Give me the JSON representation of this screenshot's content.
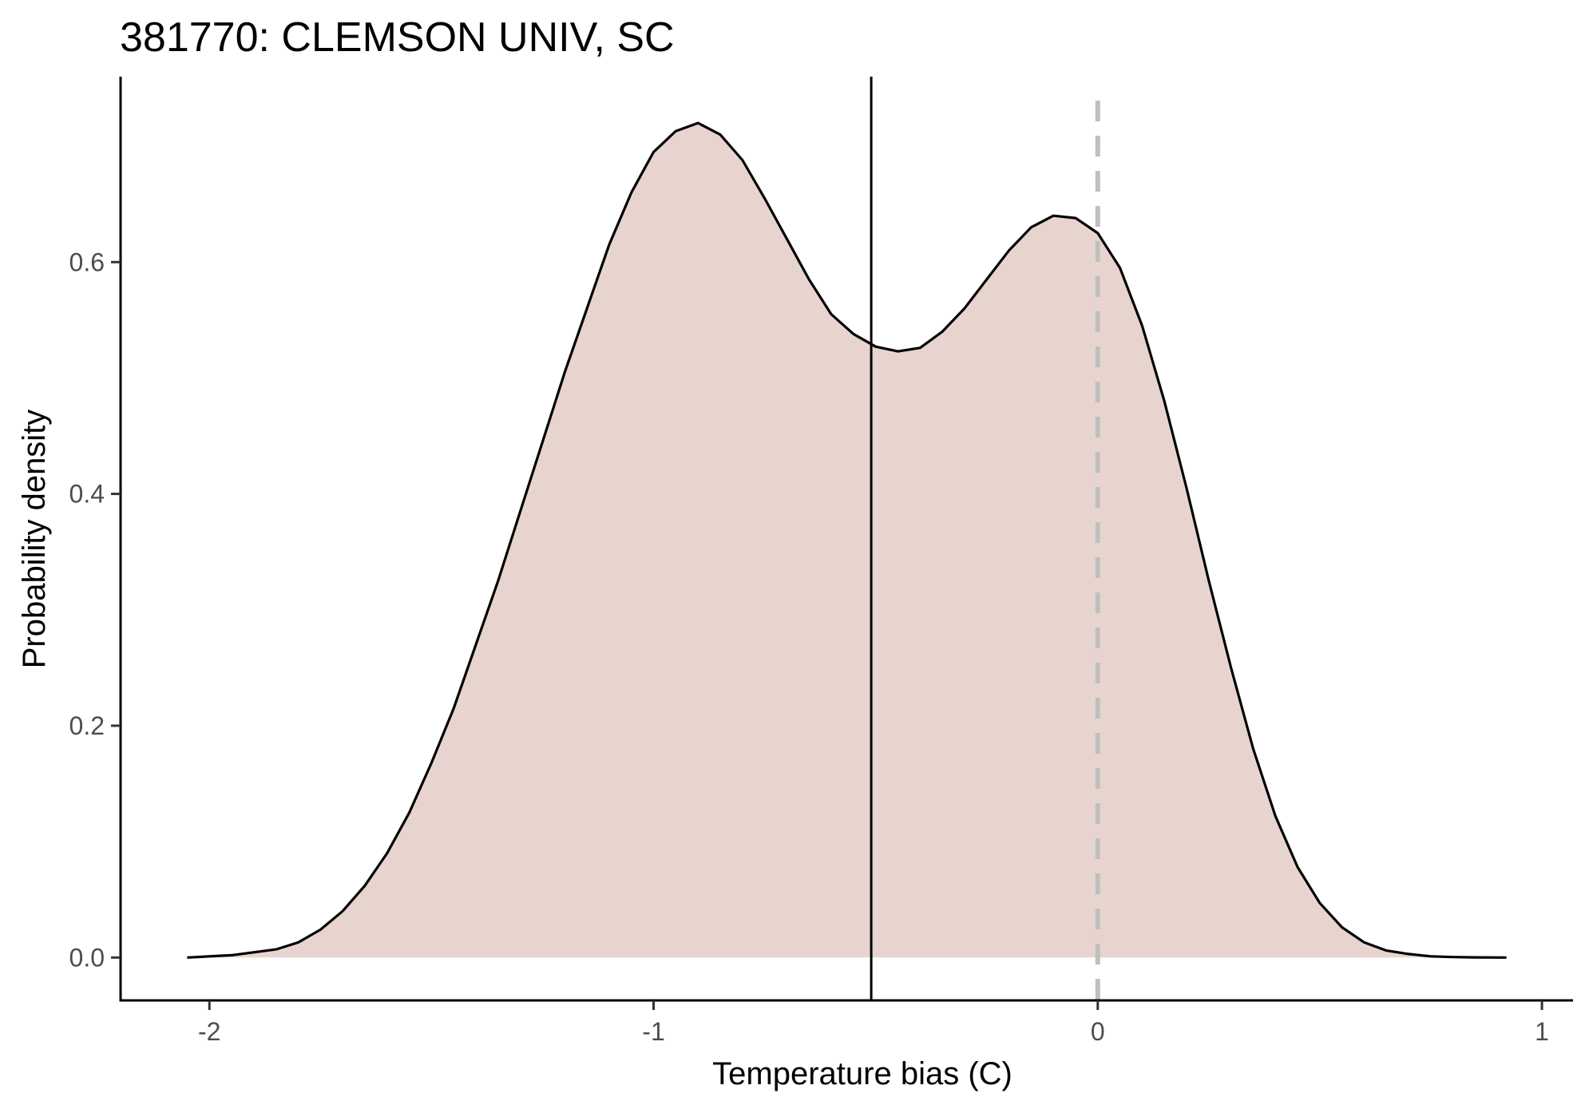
{
  "chart_data": {
    "type": "area",
    "title": "381770: CLEMSON UNIV, SC",
    "xlabel": "Temperature bias (C)",
    "ylabel": "Probability density",
    "xlim": [
      -2.2,
      1.07
    ],
    "ylim": [
      -0.037,
      0.76
    ],
    "x_ticks": [
      -2,
      -1,
      0,
      1
    ],
    "x_tick_labels": [
      "-2",
      "-1",
      "0",
      "1"
    ],
    "y_ticks": [
      0.0,
      0.2,
      0.4,
      0.6
    ],
    "y_tick_labels": [
      "0.0",
      "0.2",
      "0.4",
      "0.6"
    ],
    "grid": false,
    "fill_color": "#e8d4ce",
    "line_color": "#000000",
    "series": [
      {
        "x": [
          -2.05,
          -1.95,
          -1.85,
          -1.8,
          -1.75,
          -1.7,
          -1.65,
          -1.6,
          -1.55,
          -1.5,
          -1.45,
          -1.4,
          -1.35,
          -1.3,
          -1.25,
          -1.2,
          -1.15,
          -1.1,
          -1.05,
          -1.0,
          -0.95,
          -0.9,
          -0.85,
          -0.8,
          -0.75,
          -0.7,
          -0.65,
          -0.6,
          -0.55,
          -0.5,
          -0.45,
          -0.4,
          -0.35,
          -0.3,
          -0.25,
          -0.2,
          -0.15,
          -0.1,
          -0.05,
          0.0,
          0.05,
          0.1,
          0.15,
          0.2,
          0.25,
          0.3,
          0.35,
          0.4,
          0.45,
          0.5,
          0.55,
          0.6,
          0.65,
          0.7,
          0.75,
          0.8,
          0.85,
          0.92
        ],
        "y": [
          0.0,
          0.002,
          0.007,
          0.013,
          0.024,
          0.04,
          0.062,
          0.09,
          0.125,
          0.168,
          0.215,
          0.27,
          0.325,
          0.385,
          0.445,
          0.505,
          0.56,
          0.615,
          0.66,
          0.695,
          0.713,
          0.72,
          0.71,
          0.688,
          0.655,
          0.62,
          0.585,
          0.555,
          0.538,
          0.527,
          0.523,
          0.526,
          0.54,
          0.56,
          0.585,
          0.61,
          0.63,
          0.64,
          0.638,
          0.625,
          0.595,
          0.545,
          0.48,
          0.405,
          0.325,
          0.25,
          0.18,
          0.122,
          0.078,
          0.047,
          0.026,
          0.013,
          0.006,
          0.003,
          0.001,
          0.0004,
          0.0001,
          0.0
        ]
      }
    ],
    "vlines": [
      {
        "x": -0.51,
        "style": "solid",
        "color": "#000000"
      },
      {
        "x": 0.0,
        "style": "dashed",
        "color": "#bfbfbf"
      }
    ]
  }
}
